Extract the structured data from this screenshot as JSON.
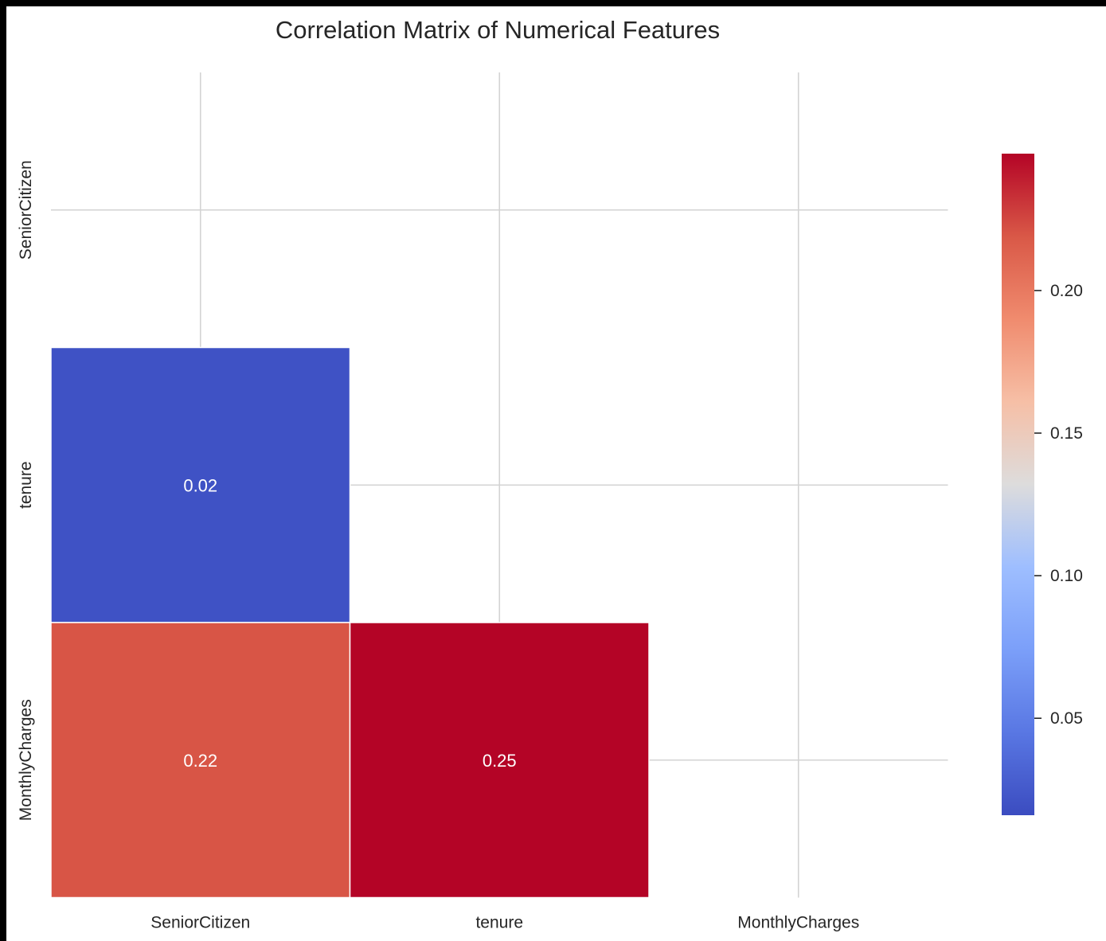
{
  "chart_data": {
    "type": "heatmap",
    "title": "Correlation Matrix of Numerical Features",
    "variables": [
      "SeniorCitizen",
      "tenure",
      "MonthlyCharges"
    ],
    "cells": [
      {
        "row": "tenure",
        "col": "SeniorCitizen",
        "value": 0.02,
        "label": "0.02"
      },
      {
        "row": "MonthlyCharges",
        "col": "SeniorCitizen",
        "value": 0.22,
        "label": "0.22"
      },
      {
        "row": "MonthlyCharges",
        "col": "tenure",
        "value": 0.25,
        "label": "0.25"
      }
    ],
    "mask": "upper-triangle-including-diagonal",
    "colormap": "coolwarm",
    "colorbar": {
      "min": 0.016,
      "max": 0.248,
      "ticks": [
        0.05,
        0.1,
        0.15,
        0.2
      ],
      "tick_labels": [
        "0.05",
        "0.10",
        "0.15",
        "0.20"
      ],
      "placement": "right"
    },
    "grid": true
  }
}
